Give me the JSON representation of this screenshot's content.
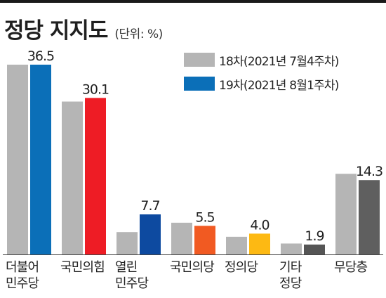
{
  "header": {
    "title": "정당 지지도",
    "unit": "(단위: %)"
  },
  "colors": {
    "prev_bar": "#b5b5b5",
    "axis": "#444444",
    "topbar": "#1a1a1a"
  },
  "chart_data": {
    "type": "bar",
    "title": "정당 지지도",
    "unit": "(단위: %)",
    "categories": [
      [
        "더불어",
        "민주당"
      ],
      [
        "국민의힘"
      ],
      [
        "열린",
        "민주당"
      ],
      [
        "국민의당"
      ],
      [
        "정의당"
      ],
      [
        "기타",
        "정당"
      ],
      [
        "무당층"
      ]
    ],
    "series": [
      {
        "name": "18차(2021년 7월4주차)",
        "values": [
          36.5,
          29.4,
          4.3,
          6.1,
          3.4,
          2.1,
          15.5
        ]
      },
      {
        "name": "19차(2021년 8월1주차)",
        "values": [
          36.5,
          30.1,
          7.7,
          5.5,
          4.0,
          1.9,
          14.3
        ]
      }
    ],
    "value_labels": [
      "36.5",
      "30.1",
      "7.7",
      "5.5",
      "4.0",
      "1.9",
      "14.3"
    ],
    "current_colors": [
      "#0b6fb8",
      "#ee1c25",
      "#0d4aa0",
      "#f15a22",
      "#fdb913",
      "#555555",
      "#5f5f5f"
    ],
    "ylim": [
      0,
      38
    ],
    "legend_position": "top-right",
    "grid": false
  }
}
